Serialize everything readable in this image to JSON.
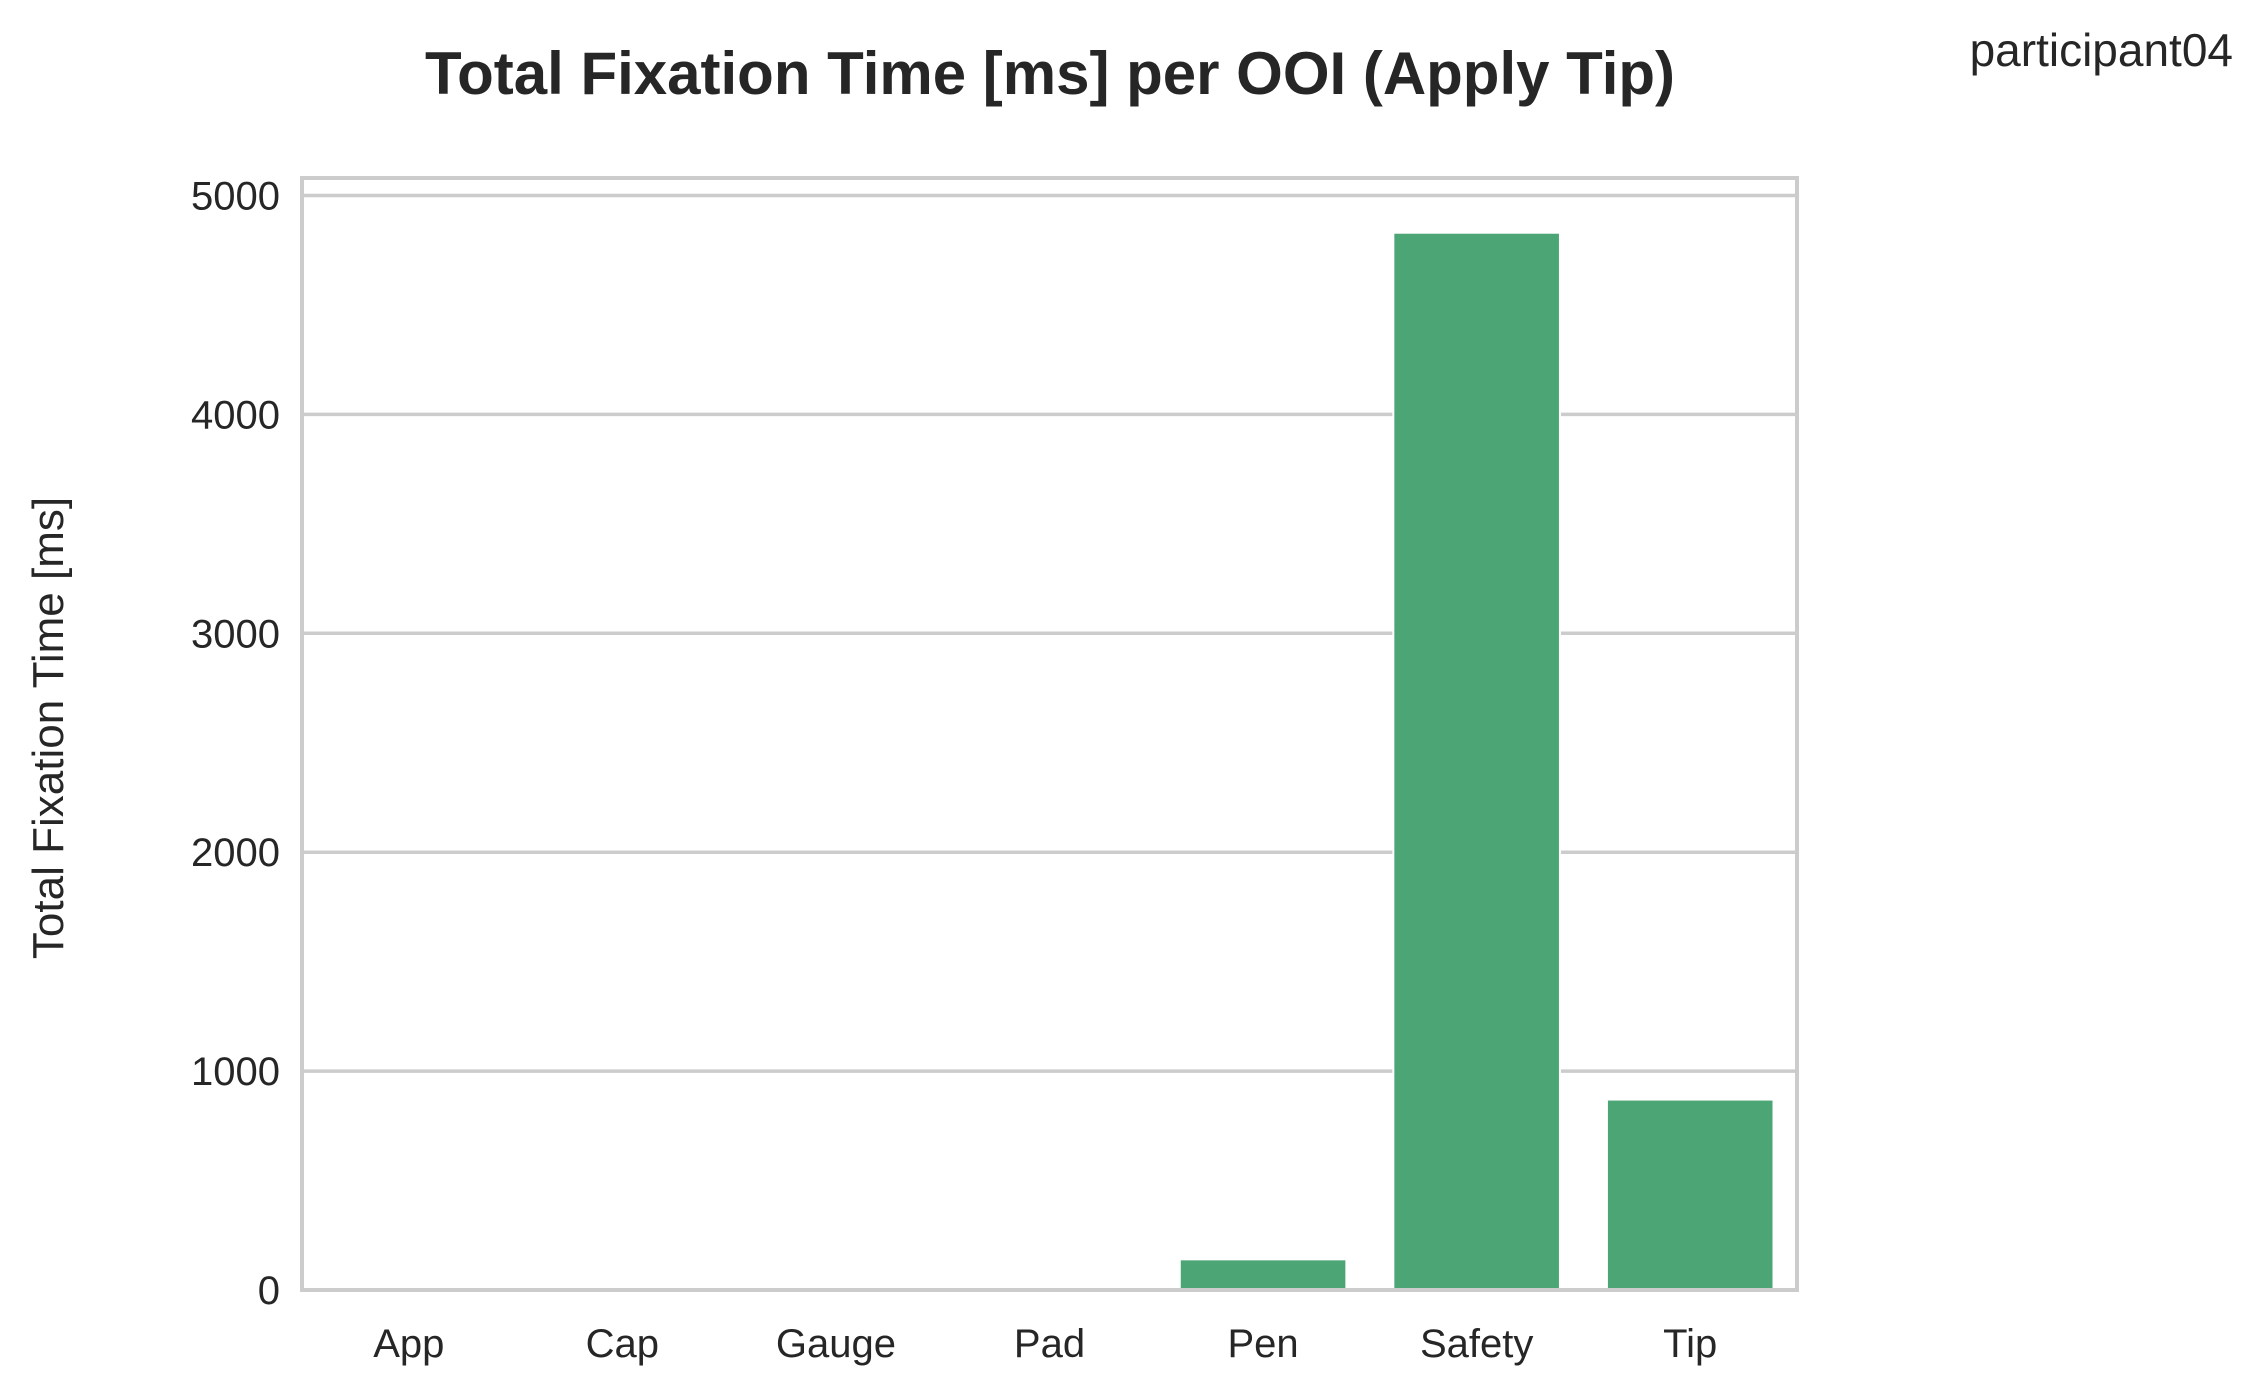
{
  "chart_data": {
    "type": "bar",
    "title": "Total Fixation Time [ms] per OOI (Apply Tip)",
    "annotation": "participant04",
    "xlabel": "",
    "ylabel": "Total Fixation Time [ms]",
    "categories": [
      "App",
      "Cap",
      "Gauge",
      "Pad",
      "Pen",
      "Safety",
      "Tip"
    ],
    "values": [
      0,
      0,
      0,
      0,
      140,
      4830,
      870
    ],
    "ylim": [
      0,
      5080
    ],
    "yticks": [
      0,
      1000,
      2000,
      3000,
      4000,
      5000
    ],
    "ytick_labels": [
      "0",
      "1000",
      "2000",
      "3000",
      "4000",
      "5000"
    ],
    "grid": true,
    "legend": "none",
    "bar_color": "#4ca574",
    "grid_color": "#cccccc",
    "spine_color": "#cccccc"
  }
}
